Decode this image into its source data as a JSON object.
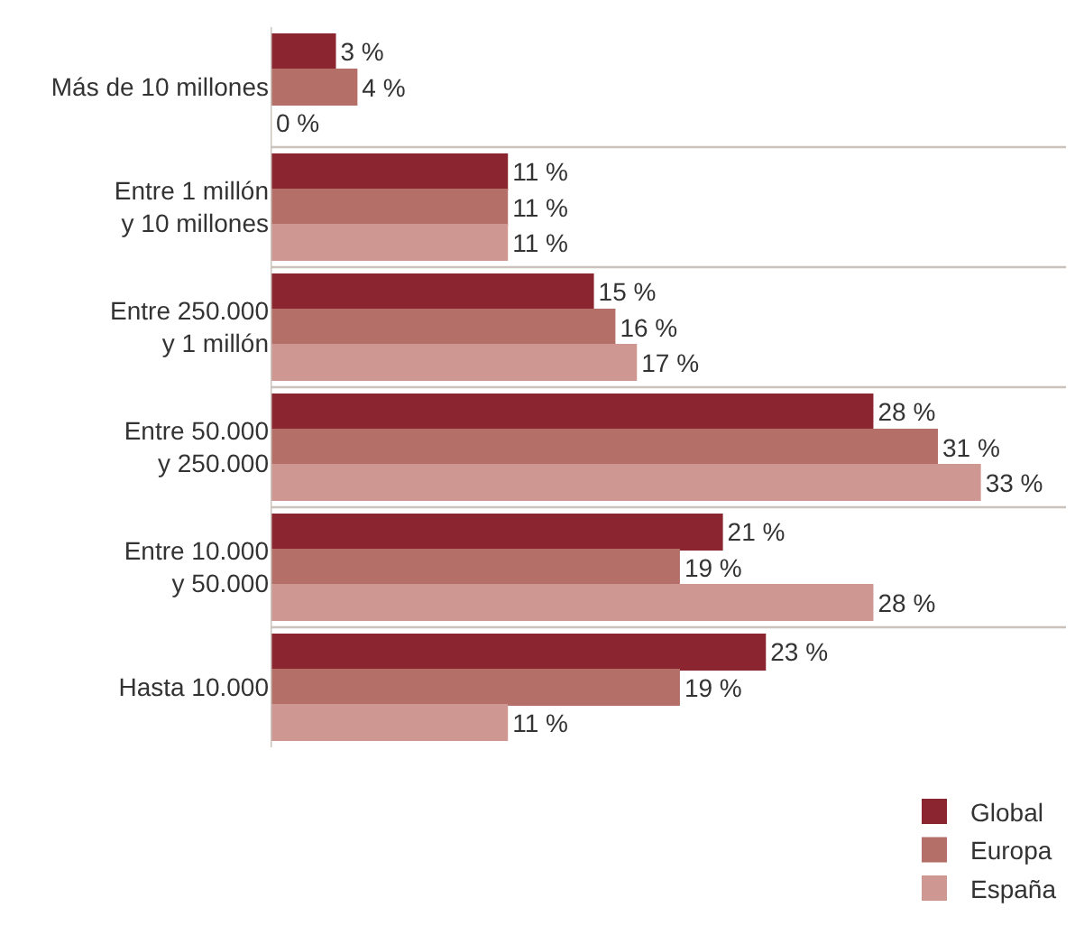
{
  "chart_data": {
    "type": "bar",
    "orientation": "horizontal",
    "categories": [
      "Más de 10 millones",
      "Entre 1 millón\ny 10 millones",
      "Entre 250.000\ny 1 millón",
      "Entre 50.000\ny 250.000",
      "Entre 10.000\ny 50.000",
      "Hasta 10.000"
    ],
    "series": [
      {
        "name": "Global",
        "color": "#8b2630",
        "values": [
          3,
          11,
          15,
          28,
          21,
          23
        ],
        "value_labels": [
          "3 %",
          "11 %",
          "15 %",
          "28 %",
          "21 %",
          "23 %"
        ]
      },
      {
        "name": "Europa",
        "color": "#b46f69",
        "values": [
          4,
          11,
          16,
          31,
          19,
          19
        ],
        "value_labels": [
          "4 %",
          "11 %",
          "16 %",
          "31 %",
          "19 %",
          "19 %"
        ]
      },
      {
        "name": "España",
        "color": "#cf9791",
        "values": [
          0,
          11,
          17,
          33,
          28,
          11
        ],
        "value_labels": [
          "0 %",
          "11 %",
          "17 %",
          "33 %",
          "28 %",
          "11 %"
        ]
      }
    ],
    "xlim": [
      0,
      37
    ],
    "grid": "y",
    "legend": "bottom right"
  }
}
